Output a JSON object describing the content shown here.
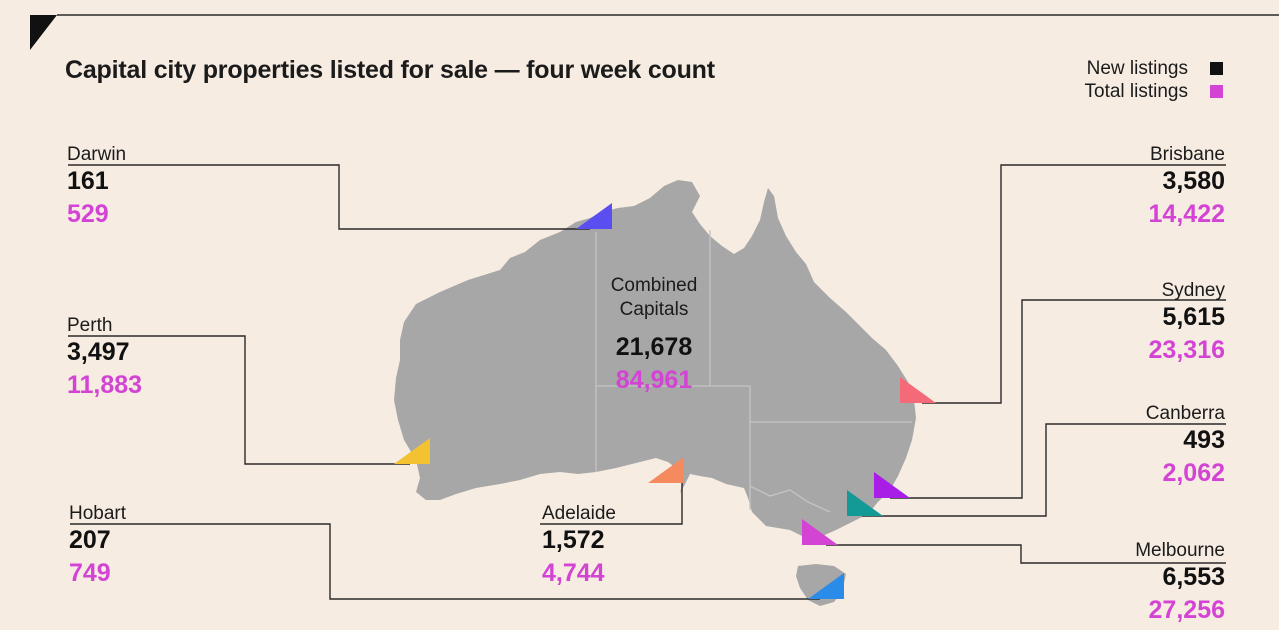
{
  "title": "Capital city properties listed for sale — four week count",
  "legend": {
    "new_label": "New listings",
    "total_label": "Total listings",
    "new_color": "#111111",
    "total_color": "#d444d4"
  },
  "colors": {
    "background": "#f6ece2",
    "land": "#a7a7a7",
    "state_border": "#c4c4c4",
    "leader_line": "#2a2a2a"
  },
  "combined": {
    "label_line1": "Combined",
    "label_line2": "Capitals",
    "new": "21,678",
    "total": "84,961"
  },
  "cities": {
    "darwin": {
      "name": "Darwin",
      "new": "161",
      "total": "529",
      "marker_color": "#5b4ef0"
    },
    "perth": {
      "name": "Perth",
      "new": "3,497",
      "total": "11,883",
      "marker_color": "#f2c230"
    },
    "hobart": {
      "name": "Hobart",
      "new": "207",
      "total": "749",
      "marker_color": "#2a8be8"
    },
    "adelaide": {
      "name": "Adelaide",
      "new": "1,572",
      "total": "4,744",
      "marker_color": "#f48a5e"
    },
    "brisbane": {
      "name": "Brisbane",
      "new": "3,580",
      "total": "14,422",
      "marker_color": "#f46a78"
    },
    "sydney": {
      "name": "Sydney",
      "new": "5,615",
      "total": "23,316",
      "marker_color": "#a81ee6"
    },
    "canberra": {
      "name": "Canberra",
      "new": "493",
      "total": "2,062",
      "marker_color": "#149a96"
    },
    "melbourne": {
      "name": "Melbourne",
      "new": "6,553",
      "total": "27,256",
      "marker_color": "#d444d4"
    }
  }
}
